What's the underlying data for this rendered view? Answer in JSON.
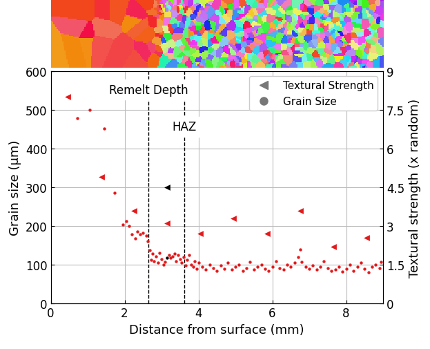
{
  "chart_data": {
    "type": "scatter",
    "x_label": "Distance from surface (mm)",
    "y_label": "Grain size (μm)",
    "y2_label": "Textural strength (x random)",
    "xlim": [
      0,
      9
    ],
    "xticks": [
      0,
      2,
      4,
      6,
      8
    ],
    "ylim": [
      0,
      600
    ],
    "yticks": [
      0,
      100,
      200,
      300,
      400,
      500,
      600
    ],
    "y2lim": [
      0,
      9
    ],
    "y2ticks": [
      0,
      1.5,
      3,
      4.5,
      6,
      7.5,
      9
    ],
    "grid": true,
    "legend": "upper right",
    "vlines": [
      {
        "x": 2.65,
        "label": "Remelt Depth"
      },
      {
        "x": 3.62,
        "label": "HAZ"
      }
    ],
    "series": [
      {
        "name": "Textural Strength",
        "axis": "y2",
        "color": "#e31a1c",
        "marker": "triangle_left",
        "x": [
          0.45,
          1.38,
          2.25,
          3.15,
          4.05,
          4.95,
          5.85,
          6.75,
          7.65,
          8.55
        ],
        "values": [
          8.0,
          4.9,
          3.6,
          3.1,
          2.7,
          3.3,
          2.7,
          3.6,
          2.2,
          2.55
        ]
      },
      {
        "name": "Grain Size",
        "axis": "y",
        "color": "#e31a1c",
        "marker": "circle",
        "x": [
          0.72,
          1.05,
          1.45,
          1.72,
          1.95,
          2.05,
          2.12,
          2.2,
          2.28,
          2.35,
          2.42,
          2.5,
          2.58,
          2.62,
          2.68,
          2.72,
          2.76,
          2.8,
          2.85,
          2.9,
          2.95,
          3.0,
          3.05,
          3.1,
          3.2,
          3.25,
          3.3,
          3.35,
          3.4,
          3.45,
          3.5,
          3.55,
          3.6,
          3.65,
          3.7,
          3.75,
          3.8,
          3.85,
          3.9,
          3.95,
          4.0,
          4.1,
          4.2,
          4.3,
          4.4,
          4.5,
          4.6,
          4.7,
          4.8,
          4.9,
          5.0,
          5.1,
          5.2,
          5.3,
          5.4,
          5.5,
          5.6,
          5.7,
          5.8,
          5.9,
          6.0,
          6.1,
          6.2,
          6.3,
          6.4,
          6.5,
          6.6,
          6.7,
          6.75,
          6.8,
          6.9,
          7.0,
          7.1,
          7.2,
          7.3,
          7.4,
          7.5,
          7.6,
          7.7,
          7.8,
          7.9,
          8.0,
          8.1,
          8.2,
          8.3,
          8.4,
          8.5,
          8.6,
          8.7,
          8.8,
          8.9,
          8.95
        ],
        "values": [
          478,
          500,
          452,
          285,
          203,
          212,
          200,
          178,
          168,
          185,
          178,
          182,
          175,
          160,
          138,
          112,
          128,
          110,
          122,
          105,
          130,
          115,
          100,
          108,
          125,
          118,
          122,
          128,
          110,
          125,
          115,
          105,
          120,
          98,
          112,
          125,
          100,
          95,
          110,
          90,
          105,
          95,
          88,
          100,
          92,
          85,
          98,
          90,
          105,
          88,
          95,
          100,
          85,
          92,
          108,
          88,
          95,
          100,
          90,
          85,
          95,
          110,
          92,
          88,
          100,
          95,
          105,
          120,
          140,
          108,
          95,
          90,
          98,
          88,
          95,
          110,
          92,
          85,
          88,
          95,
          82,
          90,
          100,
          85,
          95,
          105,
          90,
          80,
          95,
          100,
          92,
          108
        ]
      },
      {
        "axis": "y2",
        "color": "#000000",
        "marker": "triangle_left",
        "x": [
          3.15
        ],
        "values": [
          4.5
        ]
      },
      {
        "axis": "y",
        "color": "#000000",
        "marker": "circle",
        "x": [
          3.15
        ],
        "values": [
          118
        ]
      }
    ]
  }
}
